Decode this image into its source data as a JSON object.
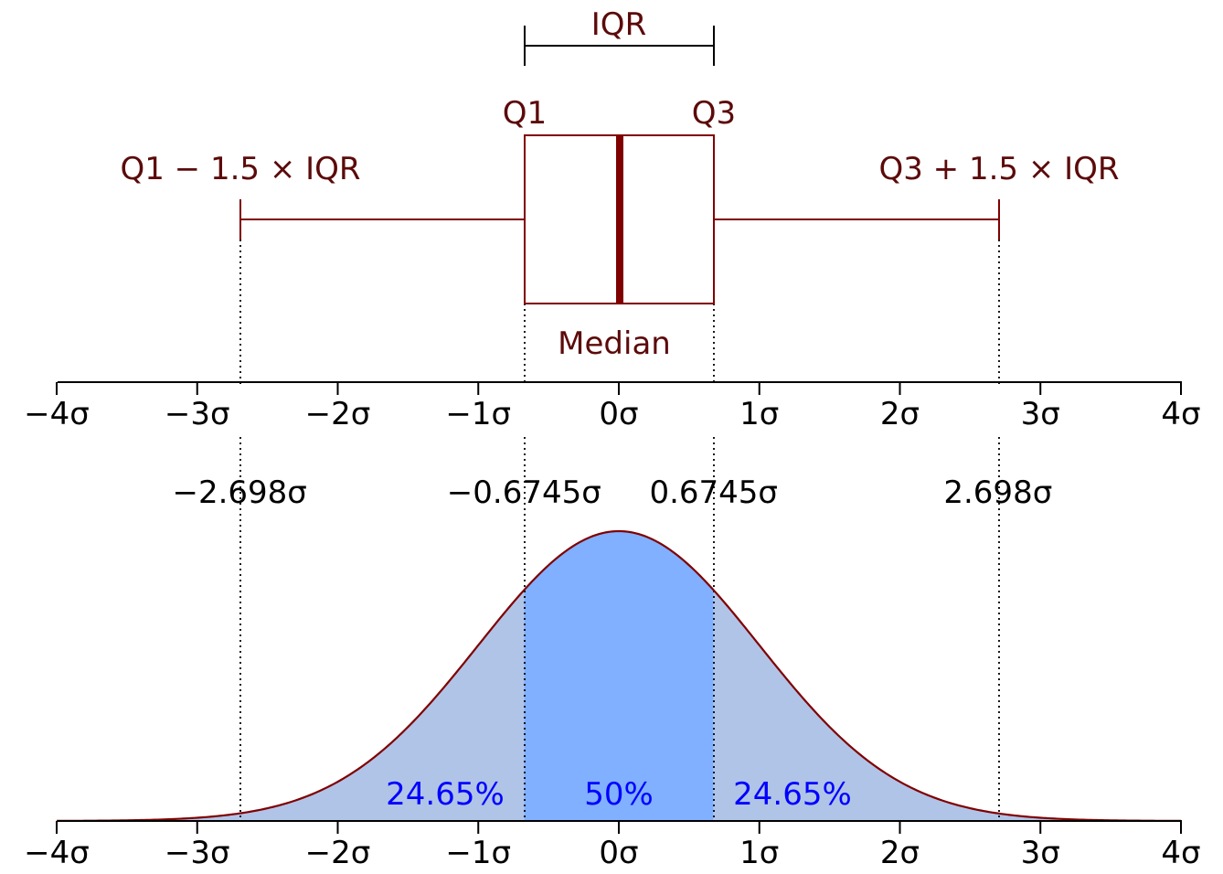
{
  "labels": {
    "iqr": "IQR",
    "q1": "Q1",
    "q3": "Q3",
    "lower_fence": "Q1 − 1.5 × IQR",
    "upper_fence": "Q3 + 1.5 × IQR",
    "median": "Median"
  },
  "axis_ticks": [
    "−4σ",
    "−3σ",
    "−2σ",
    "−1σ",
    "0σ",
    "1σ",
    "2σ",
    "3σ",
    "4σ"
  ],
  "marker_labels": [
    "−2.698σ",
    "−0.6745σ",
    "0.6745σ",
    "2.698σ"
  ],
  "percentages": {
    "left": "24.65%",
    "center": "50%",
    "right": "24.65%"
  },
  "chart_data": {
    "type": "area",
    "distribution": "normal",
    "x_range": [
      -4,
      4
    ],
    "tick_values": [
      -4,
      -3,
      -2,
      -1,
      0,
      1,
      2,
      3,
      4
    ],
    "quartiles": {
      "q1": -0.6745,
      "median": 0,
      "q3": 0.6745
    },
    "whiskers": {
      "low": -2.698,
      "high": 2.698
    },
    "regions": [
      {
        "from": -2.698,
        "to": -0.6745,
        "percent": 24.65
      },
      {
        "from": -0.6745,
        "to": 0.6745,
        "percent": 50
      },
      {
        "from": 0.6745,
        "to": 2.698,
        "percent": 24.65
      }
    ]
  },
  "colors": {
    "maroon": "#800000",
    "label_maroon": "#5c0a0a",
    "tail_fill": "#b0c4e8",
    "center_fill": "#80b0ff",
    "pct_text": "#0000ff"
  }
}
